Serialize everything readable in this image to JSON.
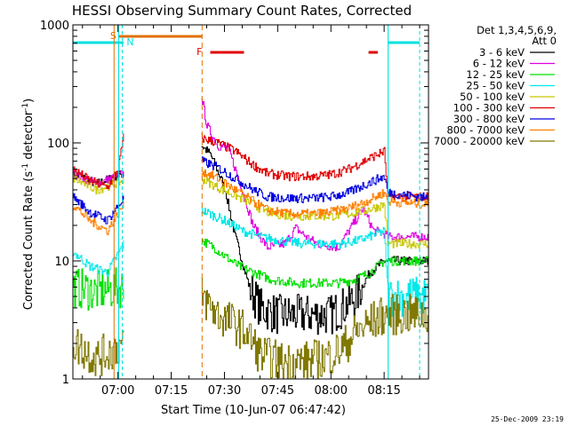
{
  "chart_data": {
    "type": "line",
    "title": "HESSI Observing Summary Count Rates, Corrected",
    "xlabel": "Start Time (10-Jun-07 06:47:42)",
    "ylabel_main": "Corrected Count Rate (s",
    "ylabel_sup1": "-1",
    "ylabel_mid": " detector",
    "ylabel_sup2": "-1",
    "ylabel_end": ")",
    "yscale": "log",
    "ylim": [
      1,
      1000
    ],
    "xlim_minutes": [
      -12.7,
      87.5
    ],
    "x_ticks": [
      {
        "label": "07:00",
        "min": 0
      },
      {
        "label": "07:15",
        "min": 15
      },
      {
        "label": "07:30",
        "min": 30
      },
      {
        "label": "07:45",
        "min": 45
      },
      {
        "label": "08:00",
        "min": 60
      },
      {
        "label": "08:15",
        "min": 75
      }
    ],
    "y_ticks": [
      {
        "label": "1",
        "v": 1
      },
      {
        "label": "10",
        "v": 10
      },
      {
        "label": "100",
        "v": 100
      },
      {
        "label": "1000",
        "v": 1000
      }
    ],
    "legend_title": [
      "Det 1,3,4,5,6,9,",
      "Att 0"
    ],
    "timestamp": "25-Dec-2009 23:19",
    "flags": {
      "saa_label": "S",
      "night_label": "N",
      "flare_label": "F"
    },
    "series": [
      {
        "name": "3 - 6 keV",
        "color": "#000000",
        "gap": true,
        "x": [
          -12.7,
          -6,
          1.6,
          23.5,
          26,
          30,
          33,
          37,
          40,
          45,
          52,
          60,
          63,
          67,
          71,
          75,
          76,
          87.5
        ],
        "y": [
          55,
          45,
          55,
          95,
          80,
          42,
          16,
          6,
          4,
          3.5,
          3.5,
          3.5,
          4,
          5,
          8,
          10,
          10,
          10
        ]
      },
      {
        "name": "6 - 12 keV",
        "color": "#e000e0",
        "gap": true,
        "x": [
          -12.7,
          -6,
          1.6,
          23.5,
          25,
          28,
          31,
          35,
          38,
          42,
          47,
          50,
          53,
          56,
          62,
          65,
          69,
          72,
          75,
          76,
          87.5
        ],
        "y": [
          55,
          45,
          55,
          250,
          140,
          95,
          90,
          40,
          20,
          13,
          14,
          19,
          16,
          14,
          13,
          18,
          28,
          18,
          17,
          16,
          16
        ]
      },
      {
        "name": "12 - 25 keV",
        "color": "#00e000",
        "gap": true,
        "x": [
          -12.7,
          -6,
          1.6,
          23.5,
          27,
          30,
          34,
          38,
          43,
          50,
          56,
          62,
          67,
          71,
          75,
          76,
          87.5
        ],
        "y": [
          6,
          5.5,
          6,
          15,
          13,
          11,
          9,
          8,
          7,
          6.5,
          6.5,
          6.5,
          7,
          8,
          10,
          10,
          10
        ]
      },
      {
        "name": "25 - 50 keV",
        "color": "#00e8e8",
        "gap": true,
        "x": [
          -12.7,
          -8,
          -3,
          1.6,
          23.5,
          30,
          35,
          40,
          45,
          52,
          58,
          63,
          68,
          73,
          75,
          76,
          87.5
        ],
        "y": [
          12,
          9,
          8,
          14,
          27,
          22,
          18,
          16,
          15,
          14,
          14,
          14,
          15,
          17,
          18,
          5,
          5
        ]
      },
      {
        "name": "50 - 100 keV",
        "color": "#c8c800",
        "gap": true,
        "x": [
          -12.7,
          -6,
          1.6,
          23.5,
          28,
          33,
          38,
          42,
          48,
          55,
          60,
          65,
          70,
          75,
          76,
          87.5
        ],
        "y": [
          50,
          40,
          48,
          50,
          42,
          36,
          30,
          26,
          24,
          24,
          24,
          25,
          27,
          30,
          14,
          14
        ]
      },
      {
        "name": "100 - 300 keV",
        "color": "#e00000",
        "gap": true,
        "x": [
          -12.7,
          -8,
          -3,
          0,
          1.6,
          23.5,
          28,
          33,
          38,
          42,
          48,
          55,
          60,
          65,
          70,
          75,
          76,
          87.5
        ],
        "y": [
          60,
          48,
          42,
          60,
          115,
          110,
          100,
          85,
          65,
          55,
          52,
          52,
          54,
          60,
          72,
          85,
          35,
          35
        ]
      },
      {
        "name": "300 - 800 keV",
        "color": "#0000e0",
        "gap": true,
        "x": [
          -12.7,
          -8,
          -3,
          1.6,
          23.5,
          28,
          33,
          38,
          42,
          48,
          55,
          60,
          65,
          70,
          75,
          76,
          87.5
        ],
        "y": [
          35,
          26,
          22,
          34,
          70,
          62,
          50,
          40,
          35,
          34,
          34,
          35,
          38,
          45,
          52,
          38,
          34
        ]
      },
      {
        "name": "800 - 7000 keV",
        "color": "#ff8000",
        "gap": true,
        "x": [
          -12.7,
          -8,
          -3,
          1.6,
          23.5,
          28,
          33,
          38,
          42,
          48,
          55,
          60,
          65,
          70,
          75,
          76,
          87.5
        ],
        "y": [
          30,
          22,
          18,
          30,
          58,
          50,
          40,
          32,
          27,
          25,
          25,
          26,
          28,
          32,
          38,
          32,
          30
        ]
      },
      {
        "name": "7000 - 20000 keV",
        "color": "#807800",
        "gap": true,
        "x": [
          -12.7,
          -6,
          1.6,
          23.5,
          28,
          32,
          36,
          40,
          46,
          52,
          58,
          63,
          67,
          71,
          75,
          80,
          87.5
        ],
        "y": [
          2,
          1.5,
          2,
          5,
          3.5,
          3,
          2.5,
          1.6,
          1.4,
          1.4,
          1.5,
          1.8,
          2.5,
          3,
          3.5,
          3.5,
          3.5
        ]
      }
    ]
  }
}
